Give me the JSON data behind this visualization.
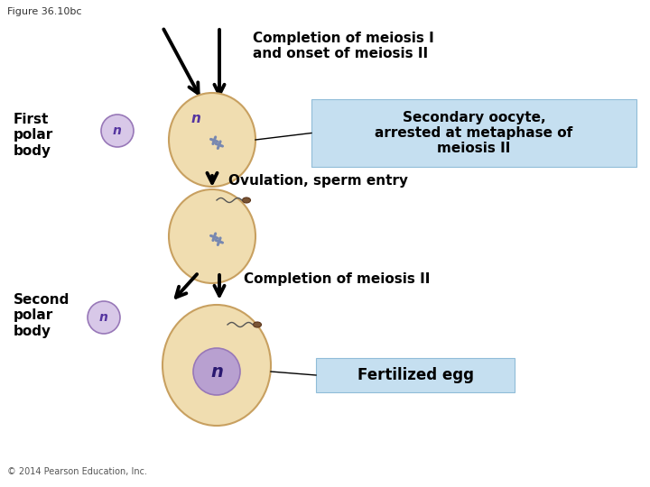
{
  "figure_label": "Figure 36.10bc",
  "copyright": "© 2014 Pearson Education, Inc.",
  "bg_color": "#ffffff",
  "cell_color": "#f0ddb0",
  "cell_edge_color": "#c8a060",
  "small_cell_color": "#d8c8e8",
  "small_cell_edge_color": "#9878b8",
  "nucleus_color": "#b8a0d0",
  "nucleus_edge_color": "#9878b8",
  "box_color": "#c5dff0",
  "box_edge_color": "#90bcd8",
  "chromosome_color": "#7888b0",
  "arrow_color": "#000000",
  "text_color": "#000000",
  "label_fontsize": 11,
  "box_text_color": "#000000",
  "top_label": "Completion of meiosis I\nand onset of meiosis II",
  "middle_label": "Ovulation, sperm entry",
  "bottom_arrow_label": "Completion of meiosis II",
  "left_label_top": "First\npolar\nbody",
  "left_label_bottom": "Second\npolar\nbody",
  "box_text_top": "Secondary oocyte,\narrested at metaphase of\nmeiosis II",
  "box_text_bottom": "Fertilized egg",
  "n_color": "#5535a0",
  "sperm_head_color": "#7a5535",
  "sperm_tail_color": "#555555"
}
